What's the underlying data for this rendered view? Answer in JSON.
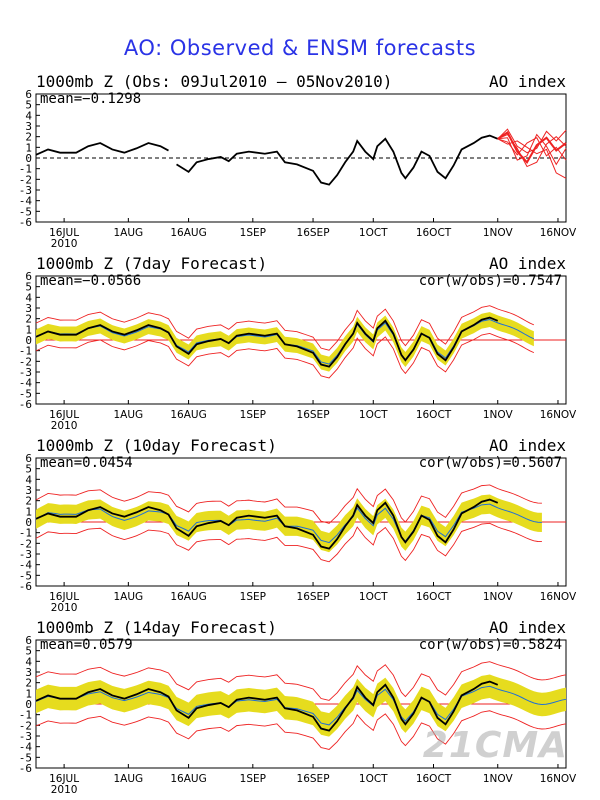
{
  "title": "AO: Observed & ENSM forecasts",
  "watermark": "21CMA",
  "colors": {
    "title": "#2a33e6",
    "obs": "#000000",
    "ens_mean": "#1f6fd6",
    "spread": "#e6dc1e",
    "range": "#ee2222"
  },
  "chart_data": [
    {
      "type": "line",
      "title": "1000mb Z (Obs: 09Jul2010 – 05Nov2010)",
      "index_label": "AO index",
      "mean_label": "mean=−0.1298",
      "cor_label": "",
      "ylim": [
        -6,
        6
      ],
      "yticks": [
        "6",
        "5",
        "4",
        "3",
        "2",
        "1",
        "0",
        "-1",
        "-2",
        "-3",
        "-4",
        "-5",
        "-6"
      ],
      "xticks": [
        "16JUL",
        "1AUG",
        "16AUG",
        "1SEP",
        "16SEP",
        "1OCT",
        "16OCT",
        "1NOV",
        "16NOV"
      ],
      "year_label": "2010",
      "x_range_day": [
        0,
        132
      ],
      "tick_days": [
        7,
        23,
        38,
        54,
        69,
        84,
        99,
        115,
        130
      ],
      "obs": [
        [
          0,
          0.3
        ],
        [
          3,
          0.8
        ],
        [
          6,
          0.5
        ],
        [
          10,
          0.5
        ],
        [
          13,
          1.1
        ],
        [
          16,
          1.4
        ],
        [
          19,
          0.8
        ],
        [
          22,
          0.5
        ],
        [
          25,
          0.9
        ],
        [
          28,
          1.4
        ],
        [
          31,
          1.1
        ],
        [
          33,
          0.7
        ],
        [
          35,
          -0.6
        ],
        [
          38,
          -1.3
        ],
        [
          40,
          -0.4
        ],
        [
          43,
          -0.1
        ],
        [
          46,
          0.1
        ],
        [
          48,
          -0.3
        ],
        [
          50,
          0.4
        ],
        [
          53,
          0.6
        ],
        [
          57,
          0.4
        ],
        [
          60,
          0.6
        ],
        [
          62,
          -0.4
        ],
        [
          65,
          -0.6
        ],
        [
          69,
          -1.2
        ],
        [
          71,
          -2.3
        ],
        [
          73,
          -2.5
        ],
        [
          75,
          -1.6
        ],
        [
          77,
          -0.4
        ],
        [
          79,
          0.6
        ],
        [
          80,
          1.6
        ],
        [
          82,
          0.6
        ],
        [
          84,
          -0.1
        ],
        [
          85,
          1.1
        ],
        [
          87,
          1.8
        ],
        [
          89,
          0.6
        ],
        [
          91,
          -1.4
        ],
        [
          92,
          -1.9
        ],
        [
          94,
          -0.9
        ],
        [
          96,
          0.6
        ],
        [
          98,
          0.2
        ],
        [
          100,
          -1.3
        ],
        [
          102,
          -1.9
        ],
        [
          104,
          -0.7
        ],
        [
          106,
          0.8
        ],
        [
          109,
          1.4
        ],
        [
          111,
          1.9
        ],
        [
          113,
          2.1
        ],
        [
          115,
          1.8
        ]
      ],
      "obs_break_before_day": 35,
      "ens_start_day": 115,
      "ens_end_day": 132,
      "ens_members": [
        [
          1.8,
          2.4,
          0.6,
          -0.4,
          1.2,
          1.9,
          0.7,
          1.4
        ],
        [
          1.8,
          1.9,
          -0.2,
          0.2,
          2.2,
          1.1,
          -0.6,
          0.9
        ],
        [
          1.8,
          2.7,
          1.1,
          0.5,
          0.9,
          2.5,
          1.6,
          2.6
        ],
        [
          1.8,
          1.5,
          0.3,
          1.4,
          1.9,
          0.2,
          1.0,
          -0.2
        ],
        [
          1.8,
          2.2,
          0.9,
          -0.8,
          -0.4,
          1.3,
          2.0,
          1.1
        ],
        [
          1.8,
          1.3,
          1.6,
          1.0,
          0.4,
          0.8,
          -1.4,
          -1.9
        ]
      ]
    },
    {
      "type": "line",
      "title": "1000mb Z (7day Forecast)",
      "index_label": "AO index",
      "mean_label": "mean=−0.0566",
      "cor_label": "cor(w/obs)=0.7547",
      "ylim": [
        -6,
        6
      ],
      "yticks": [
        "6",
        "5",
        "4",
        "3",
        "2",
        "1",
        "0",
        "-1",
        "-2",
        "-3",
        "-4",
        "-5",
        "-6"
      ],
      "xticks": [
        "16JUL",
        "1AUG",
        "16AUG",
        "1SEP",
        "16SEP",
        "1OCT",
        "16OCT",
        "1NOV",
        "16NOV"
      ],
      "year_label": "2010",
      "x_range_day": [
        0,
        132
      ],
      "tick_days": [
        7,
        23,
        38,
        54,
        69,
        84,
        99,
        115,
        130
      ],
      "spread_half": 0.7,
      "range_half": 1.3,
      "mean_offset": 0.1,
      "fc_end_day": 124,
      "obs": [
        [
          0,
          0.3
        ],
        [
          3,
          0.8
        ],
        [
          6,
          0.5
        ],
        [
          10,
          0.5
        ],
        [
          13,
          1.1
        ],
        [
          16,
          1.4
        ],
        [
          19,
          0.8
        ],
        [
          22,
          0.5
        ],
        [
          25,
          0.9
        ],
        [
          28,
          1.4
        ],
        [
          31,
          1.1
        ],
        [
          33,
          0.7
        ],
        [
          35,
          -0.6
        ],
        [
          38,
          -1.3
        ],
        [
          40,
          -0.4
        ],
        [
          43,
          -0.1
        ],
        [
          46,
          0.1
        ],
        [
          48,
          -0.3
        ],
        [
          50,
          0.4
        ],
        [
          53,
          0.6
        ],
        [
          57,
          0.4
        ],
        [
          60,
          0.6
        ],
        [
          62,
          -0.4
        ],
        [
          65,
          -0.6
        ],
        [
          69,
          -1.2
        ],
        [
          71,
          -2.3
        ],
        [
          73,
          -2.5
        ],
        [
          75,
          -1.6
        ],
        [
          77,
          -0.4
        ],
        [
          79,
          0.6
        ],
        [
          80,
          1.6
        ],
        [
          82,
          0.6
        ],
        [
          84,
          -0.1
        ],
        [
          85,
          1.1
        ],
        [
          87,
          1.8
        ],
        [
          89,
          0.6
        ],
        [
          91,
          -1.4
        ],
        [
          92,
          -1.9
        ],
        [
          94,
          -0.9
        ],
        [
          96,
          0.6
        ],
        [
          98,
          0.2
        ],
        [
          100,
          -1.3
        ],
        [
          102,
          -1.9
        ],
        [
          104,
          -0.7
        ],
        [
          106,
          0.8
        ],
        [
          109,
          1.4
        ],
        [
          111,
          1.9
        ],
        [
          113,
          2.1
        ],
        [
          115,
          1.8
        ]
      ]
    },
    {
      "type": "line",
      "title": "1000mb Z (10day Forecast)",
      "index_label": "AO index",
      "mean_label": "mean=0.0454",
      "cor_label": "cor(w/obs)=0.5607",
      "ylim": [
        -6,
        6
      ],
      "yticks": [
        "6",
        "5",
        "4",
        "3",
        "2",
        "1",
        "0",
        "-1",
        "-2",
        "-3",
        "-4",
        "-5",
        "-6"
      ],
      "xticks": [
        "16JUL",
        "1AUG",
        "16AUG",
        "1SEP",
        "16SEP",
        "1OCT",
        "16OCT",
        "1NOV",
        "16NOV"
      ],
      "year_label": "2010",
      "x_range_day": [
        0,
        132
      ],
      "tick_days": [
        7,
        23,
        38,
        54,
        69,
        84,
        99,
        115,
        130
      ],
      "spread_half": 0.9,
      "range_half": 1.8,
      "mean_offset": 0.3,
      "fc_end_day": 126,
      "obs": [
        [
          0,
          0.3
        ],
        [
          3,
          0.8
        ],
        [
          6,
          0.5
        ],
        [
          10,
          0.5
        ],
        [
          13,
          1.1
        ],
        [
          16,
          1.4
        ],
        [
          19,
          0.8
        ],
        [
          22,
          0.5
        ],
        [
          25,
          0.9
        ],
        [
          28,
          1.4
        ],
        [
          31,
          1.1
        ],
        [
          33,
          0.7
        ],
        [
          35,
          -0.6
        ],
        [
          38,
          -1.3
        ],
        [
          40,
          -0.4
        ],
        [
          43,
          -0.1
        ],
        [
          46,
          0.1
        ],
        [
          48,
          -0.3
        ],
        [
          50,
          0.4
        ],
        [
          53,
          0.6
        ],
        [
          57,
          0.4
        ],
        [
          60,
          0.6
        ],
        [
          62,
          -0.4
        ],
        [
          65,
          -0.6
        ],
        [
          69,
          -1.2
        ],
        [
          71,
          -2.3
        ],
        [
          73,
          -2.5
        ],
        [
          75,
          -1.6
        ],
        [
          77,
          -0.4
        ],
        [
          79,
          0.6
        ],
        [
          80,
          1.6
        ],
        [
          82,
          0.6
        ],
        [
          84,
          -0.1
        ],
        [
          85,
          1.1
        ],
        [
          87,
          1.8
        ],
        [
          89,
          0.6
        ],
        [
          91,
          -1.4
        ],
        [
          92,
          -1.9
        ],
        [
          94,
          -0.9
        ],
        [
          96,
          0.6
        ],
        [
          98,
          0.2
        ],
        [
          100,
          -1.3
        ],
        [
          102,
          -1.9
        ],
        [
          104,
          -0.7
        ],
        [
          106,
          0.8
        ],
        [
          109,
          1.4
        ],
        [
          111,
          1.9
        ],
        [
          113,
          2.1
        ],
        [
          115,
          1.8
        ]
      ]
    },
    {
      "type": "line",
      "title": "1000mb Z (14day Forecast)",
      "index_label": "AO index",
      "mean_label": "mean=0.0579",
      "cor_label": "cor(w/obs)=0.5824",
      "ylim": [
        -6,
        6
      ],
      "yticks": [
        "6",
        "5",
        "4",
        "3",
        "2",
        "1",
        "0",
        "-1",
        "-2",
        "-3",
        "-4",
        "-5",
        "-6"
      ],
      "xticks": [
        "16JUL",
        "1AUG",
        "16AUG",
        "1SEP",
        "16SEP",
        "1OCT",
        "16OCT",
        "1NOV",
        "16NOV"
      ],
      "year_label": "2010",
      "x_range_day": [
        0,
        132
      ],
      "tick_days": [
        7,
        23,
        38,
        54,
        69,
        84,
        99,
        115,
        130
      ],
      "spread_half": 1.1,
      "range_half": 2.3,
      "mean_offset": 0.1,
      "fc_end_day": 132,
      "obs": [
        [
          0,
          0.3
        ],
        [
          3,
          0.8
        ],
        [
          6,
          0.5
        ],
        [
          10,
          0.5
        ],
        [
          13,
          1.1
        ],
        [
          16,
          1.4
        ],
        [
          19,
          0.8
        ],
        [
          22,
          0.5
        ],
        [
          25,
          0.9
        ],
        [
          28,
          1.4
        ],
        [
          31,
          1.1
        ],
        [
          33,
          0.7
        ],
        [
          35,
          -0.6
        ],
        [
          38,
          -1.3
        ],
        [
          40,
          -0.4
        ],
        [
          43,
          -0.1
        ],
        [
          46,
          0.1
        ],
        [
          48,
          -0.3
        ],
        [
          50,
          0.4
        ],
        [
          53,
          0.6
        ],
        [
          57,
          0.4
        ],
        [
          60,
          0.6
        ],
        [
          62,
          -0.4
        ],
        [
          65,
          -0.6
        ],
        [
          69,
          -1.2
        ],
        [
          71,
          -2.3
        ],
        [
          73,
          -2.5
        ],
        [
          75,
          -1.6
        ],
        [
          77,
          -0.4
        ],
        [
          79,
          0.6
        ],
        [
          80,
          1.6
        ],
        [
          82,
          0.6
        ],
        [
          84,
          -0.1
        ],
        [
          85,
          1.1
        ],
        [
          87,
          1.8
        ],
        [
          89,
          0.6
        ],
        [
          91,
          -1.4
        ],
        [
          92,
          -1.9
        ],
        [
          94,
          -0.9
        ],
        [
          96,
          0.6
        ],
        [
          98,
          0.2
        ],
        [
          100,
          -1.3
        ],
        [
          102,
          -1.9
        ],
        [
          104,
          -0.7
        ],
        [
          106,
          0.8
        ],
        [
          109,
          1.4
        ],
        [
          111,
          1.9
        ],
        [
          113,
          2.1
        ],
        [
          115,
          1.8
        ]
      ]
    }
  ]
}
